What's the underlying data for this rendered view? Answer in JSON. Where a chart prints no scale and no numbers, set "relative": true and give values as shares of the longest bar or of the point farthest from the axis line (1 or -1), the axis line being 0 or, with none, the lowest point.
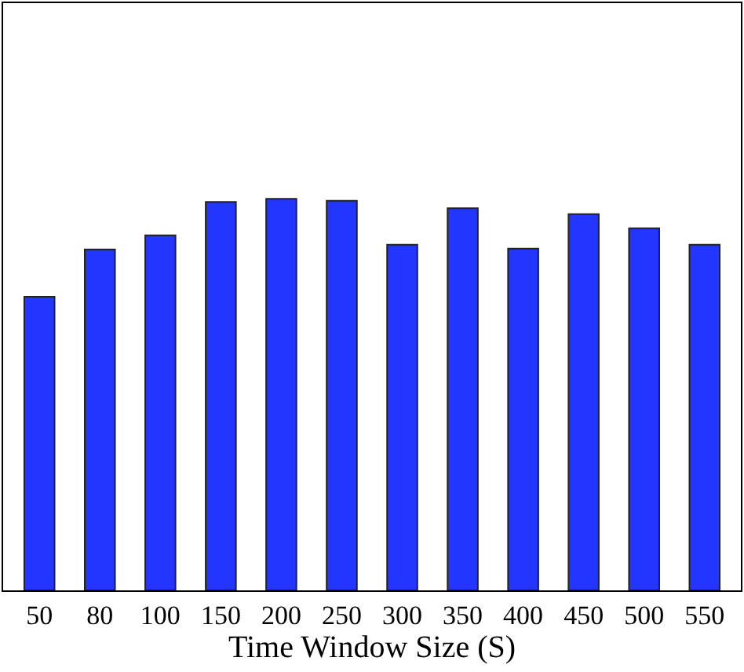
{
  "chart_data": {
    "type": "bar",
    "xlabel": "Time Window Size (S)",
    "relative": true,
    "categories": [
      "50",
      "80",
      "100",
      "150",
      "200",
      "250",
      "300",
      "350",
      "400",
      "450",
      "500",
      "550"
    ],
    "values": [
      0.75,
      0.871,
      0.907,
      0.992,
      1,
      0.995,
      0.883,
      0.976,
      0.873,
      0.961,
      0.925,
      0.883
    ],
    "color": "#2236fe"
  }
}
